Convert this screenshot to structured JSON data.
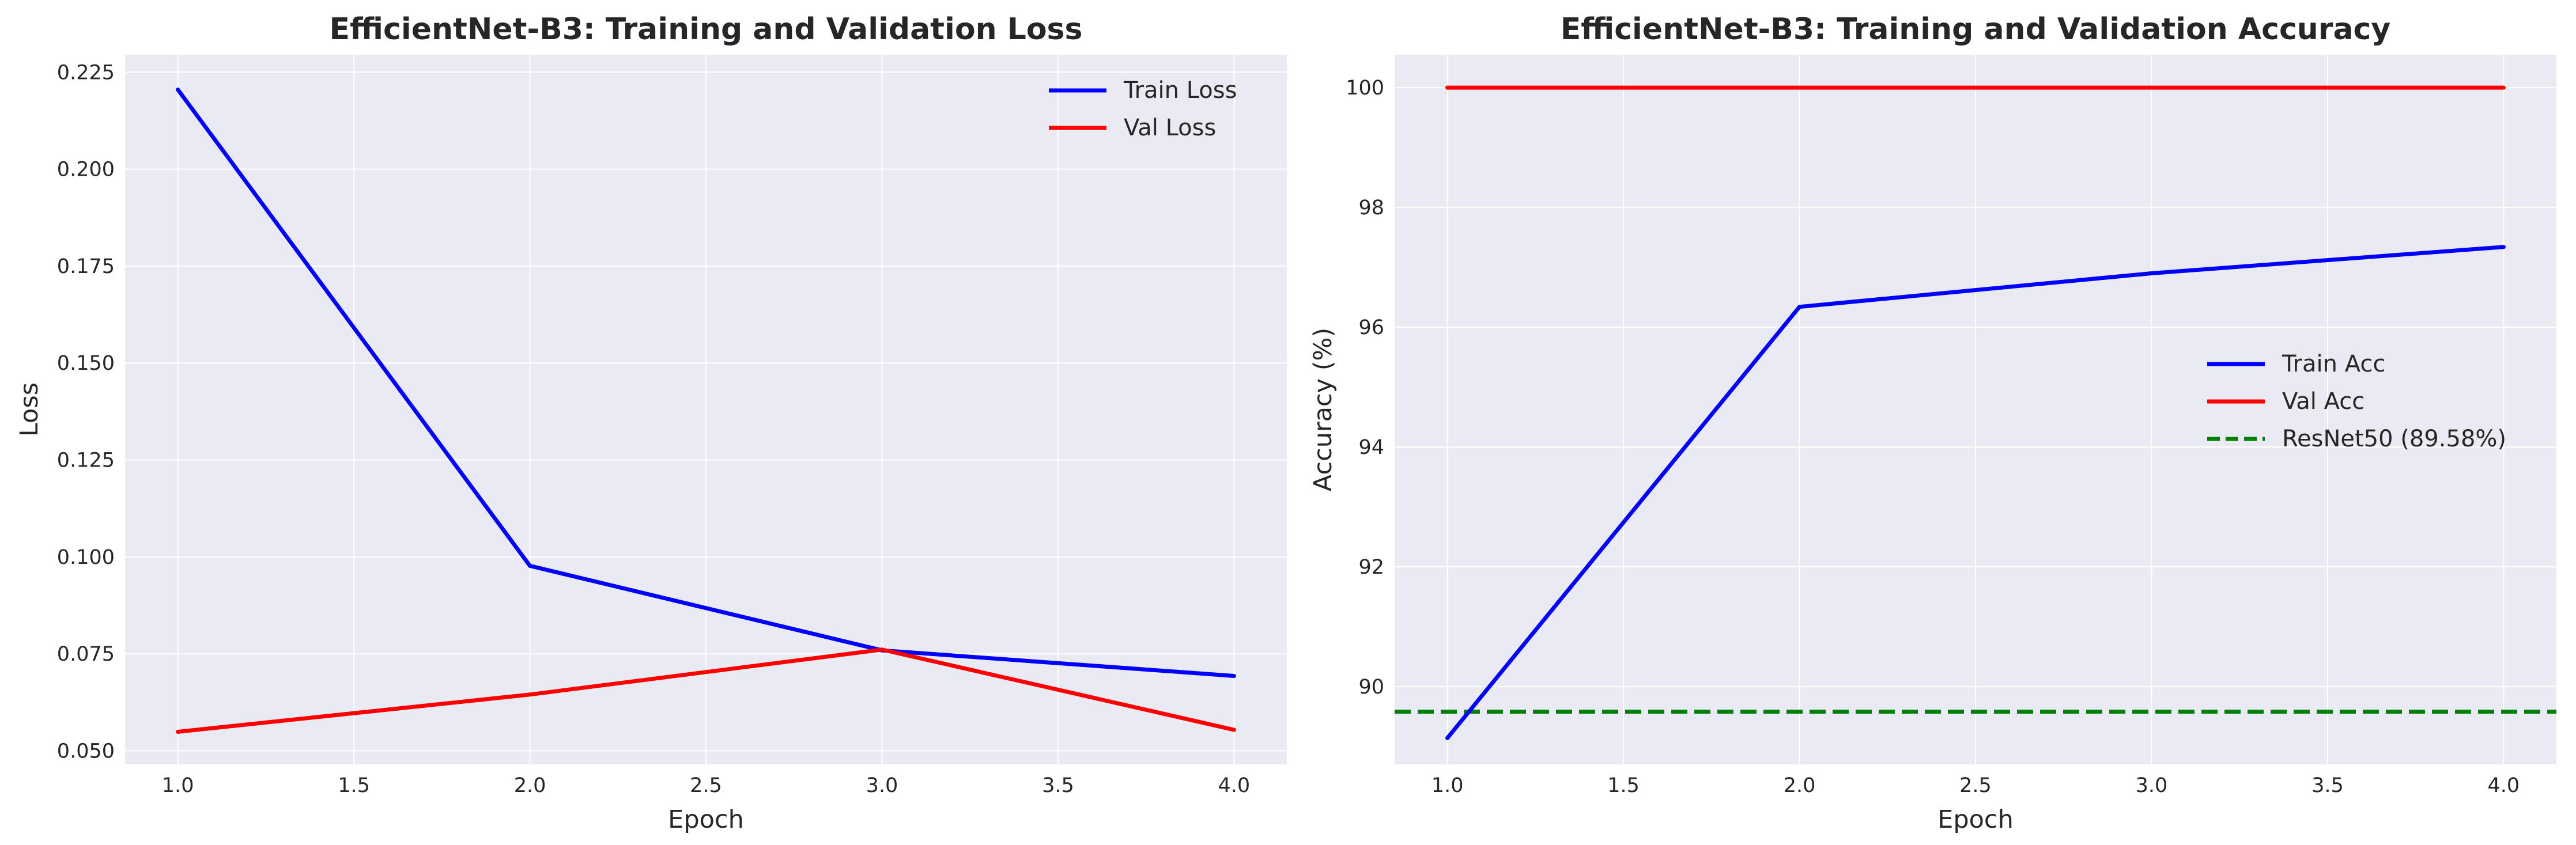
{
  "chart_data": [
    {
      "type": "line",
      "title": "EfficientNet-B3: Training and Validation Loss",
      "xlabel": "Epoch",
      "ylabel": "Loss",
      "x": [
        1.0,
        2.0,
        3.0,
        4.0
      ],
      "xlim": [
        0.85,
        4.15
      ],
      "ylim": [
        0.0465,
        0.2295
      ],
      "xticks": [
        1.0,
        1.5,
        2.0,
        2.5,
        3.0,
        3.5,
        4.0
      ],
      "xtick_labels": [
        "1.0",
        "1.5",
        "2.0",
        "2.5",
        "3.0",
        "3.5",
        "4.0"
      ],
      "yticks": [
        0.05,
        0.075,
        0.1,
        0.125,
        0.15,
        0.175,
        0.2,
        0.225
      ],
      "ytick_labels": [
        "0.050",
        "0.075",
        "0.100",
        "0.125",
        "0.150",
        "0.175",
        "0.200",
        "0.225"
      ],
      "grid": true,
      "legend_position": "top-right",
      "series": [
        {
          "name": "Train Loss",
          "color": "#0000ff",
          "style": "solid",
          "values": [
            0.2205,
            0.0977,
            0.0759,
            0.0693
          ]
        },
        {
          "name": "Val Loss",
          "color": "#ff0000",
          "style": "solid",
          "values": [
            0.0549,
            0.0645,
            0.0761,
            0.0554
          ]
        }
      ]
    },
    {
      "type": "line",
      "title": "EfficientNet-B3: Training and Validation Accuracy",
      "xlabel": "Epoch",
      "ylabel": "Accuracy (%)",
      "x": [
        1.0,
        2.0,
        3.0,
        4.0
      ],
      "xlim": [
        0.85,
        4.15
      ],
      "ylim": [
        88.7,
        100.55
      ],
      "xticks": [
        1.0,
        1.5,
        2.0,
        2.5,
        3.0,
        3.5,
        4.0
      ],
      "xtick_labels": [
        "1.0",
        "1.5",
        "2.0",
        "2.5",
        "3.0",
        "3.5",
        "4.0"
      ],
      "yticks": [
        90,
        92,
        94,
        96,
        98,
        100
      ],
      "ytick_labels": [
        "90",
        "92",
        "94",
        "96",
        "98",
        "100"
      ],
      "grid": true,
      "legend_position": "center-right",
      "series": [
        {
          "name": "Train Acc",
          "color": "#0000ff",
          "style": "solid",
          "values": [
            89.14,
            96.34,
            96.9,
            97.34
          ]
        },
        {
          "name": "Val Acc",
          "color": "#ff0000",
          "style": "solid",
          "values": [
            100.0,
            100.0,
            100.0,
            100.0
          ]
        }
      ],
      "reference_lines": [
        {
          "name": "ResNet50 (89.58%)",
          "color": "#008000",
          "style": "dashed",
          "y": 89.58
        }
      ]
    }
  ]
}
